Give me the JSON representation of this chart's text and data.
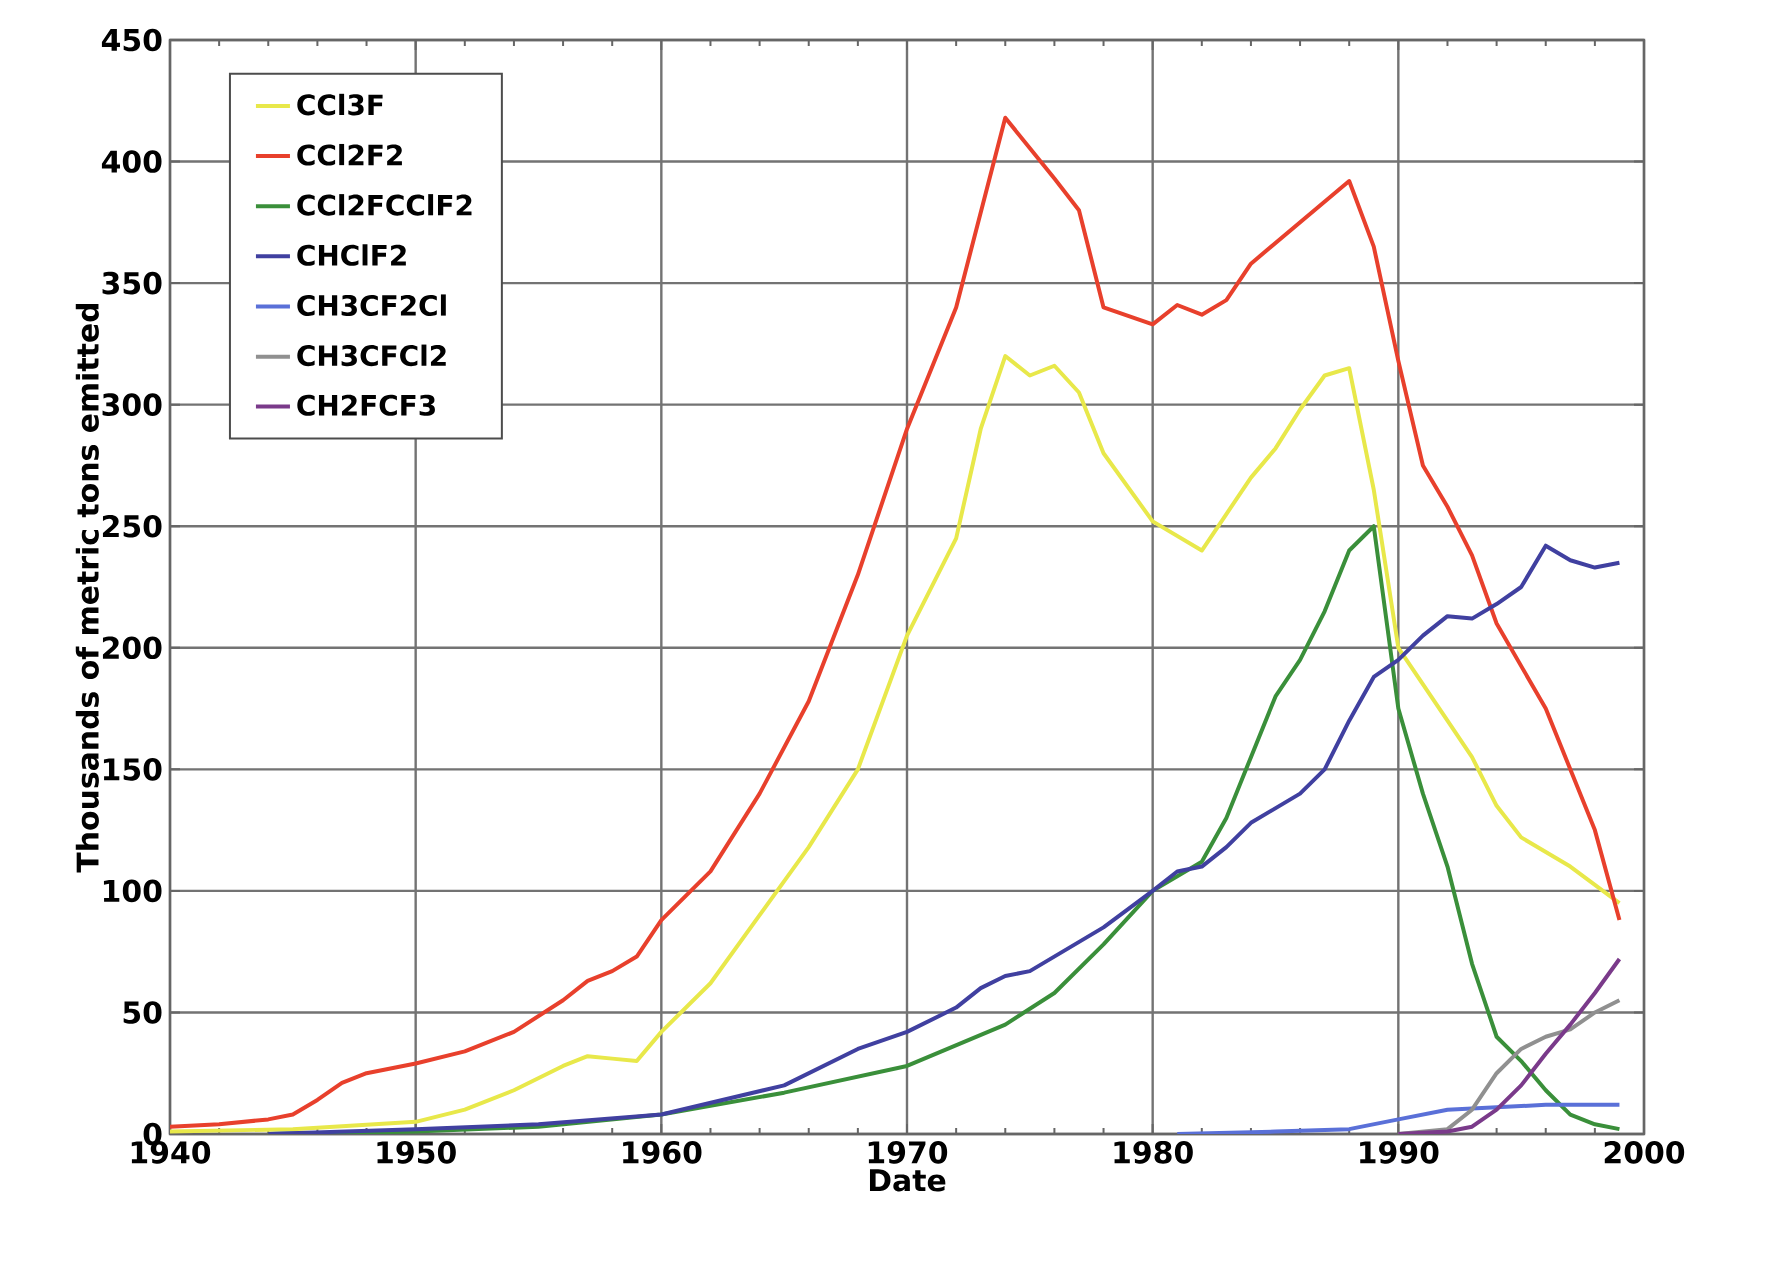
{
  "chart_data": {
    "type": "line",
    "xlabel": "Date",
    "ylabel": "Thousands of metric tons emitted",
    "xlim": [
      1940,
      2000
    ],
    "xticks": [
      1940,
      1950,
      1960,
      1970,
      1980,
      1990,
      2000
    ],
    "ylim": [
      0,
      450
    ],
    "yticks": [
      0,
      50,
      100,
      150,
      200,
      250,
      300,
      350,
      400,
      450
    ],
    "grid": true,
    "legend": "top left",
    "marker": "none",
    "line_style": "solid",
    "series": [
      {
        "name": "CCl3F",
        "color": "#e8e84a",
        "x": [
          1940,
          1945,
          1950,
          1952,
          1954,
          1956,
          1957,
          1958,
          1959,
          1960,
          1962,
          1964,
          1966,
          1968,
          1970,
          1972,
          1973,
          1974,
          1975,
          1976,
          1977,
          1978,
          1980,
          1982,
          1983,
          1984,
          1985,
          1986,
          1987,
          1988,
          1989,
          1990,
          1992,
          1993,
          1994,
          1995,
          1997,
          1999
        ],
        "values": [
          1,
          2,
          5,
          10,
          18,
          28,
          32,
          31,
          30,
          42,
          62,
          90,
          118,
          150,
          205,
          245,
          290,
          320,
          312,
          316,
          305,
          280,
          252,
          240,
          255,
          270,
          282,
          298,
          312,
          315,
          265,
          200,
          170,
          155,
          135,
          122,
          110,
          95
        ]
      },
      {
        "name": "CCl2F2",
        "color": "#e8402c",
        "x": [
          1940,
          1942,
          1944,
          1945,
          1946,
          1947,
          1948,
          1950,
          1952,
          1954,
          1956,
          1957,
          1958,
          1959,
          1960,
          1962,
          1964,
          1966,
          1968,
          1970,
          1972,
          1974,
          1976,
          1977,
          1978,
          1980,
          1981,
          1982,
          1983,
          1984,
          1986,
          1988,
          1989,
          1990,
          1991,
          1992,
          1993,
          1994,
          1996,
          1998,
          1999
        ],
        "values": [
          3,
          4,
          6,
          8,
          14,
          21,
          25,
          29,
          34,
          42,
          55,
          63,
          67,
          73,
          88,
          108,
          140,
          178,
          230,
          290,
          340,
          418,
          393,
          380,
          340,
          333,
          341,
          337,
          343,
          358,
          375,
          392,
          365,
          318,
          275,
          258,
          238,
          210,
          175,
          125,
          88
        ]
      },
      {
        "name": "CCl2FCClF2",
        "color": "#3a8f3a",
        "x": [
          1944,
          1950,
          1955,
          1960,
          1965,
          1970,
          1974,
          1976,
          1978,
          1980,
          1982,
          1983,
          1984,
          1985,
          1986,
          1987,
          1988,
          1989,
          1990,
          1991,
          1992,
          1993,
          1994,
          1995,
          1996,
          1997,
          1998,
          1999
        ],
        "values": [
          0,
          1,
          3,
          8,
          17,
          28,
          45,
          58,
          78,
          100,
          112,
          130,
          155,
          180,
          195,
          215,
          240,
          250,
          175,
          140,
          110,
          70,
          40,
          30,
          18,
          8,
          4,
          2
        ]
      },
      {
        "name": "CHClF2",
        "color": "#4040a0",
        "x": [
          1944,
          1950,
          1955,
          1960,
          1965,
          1968,
          1970,
          1972,
          1973,
          1974,
          1975,
          1978,
          1980,
          1981,
          1982,
          1983,
          1984,
          1986,
          1987,
          1988,
          1989,
          1990,
          1991,
          1992,
          1993,
          1994,
          1995,
          1996,
          1997,
          1998,
          1999
        ],
        "values": [
          0,
          2,
          4,
          8,
          20,
          35,
          42,
          52,
          60,
          65,
          67,
          85,
          100,
          108,
          110,
          118,
          128,
          140,
          150,
          170,
          188,
          195,
          205,
          213,
          212,
          218,
          225,
          242,
          236,
          233,
          235
        ]
      },
      {
        "name": "CH3CF2Cl",
        "color": "#5a70d8",
        "x": [
          1981,
          1985,
          1988,
          1990,
          1992,
          1994,
          1996,
          1999
        ],
        "values": [
          0,
          1,
          2,
          6,
          10,
          11,
          12,
          12
        ]
      },
      {
        "name": "CH3CFCl2",
        "color": "#909090",
        "x": [
          1990,
          1992,
          1993,
          1994,
          1995,
          1996,
          1997,
          1998,
          1999
        ],
        "values": [
          0,
          2,
          10,
          25,
          35,
          40,
          43,
          50,
          55
        ]
      },
      {
        "name": "CH2FCF3",
        "color": "#7a3a8a",
        "x": [
          1990,
          1992,
          1993,
          1994,
          1995,
          1996,
          1997,
          1998,
          1999
        ],
        "values": [
          0,
          1,
          3,
          10,
          20,
          33,
          45,
          58,
          72
        ]
      }
    ]
  }
}
